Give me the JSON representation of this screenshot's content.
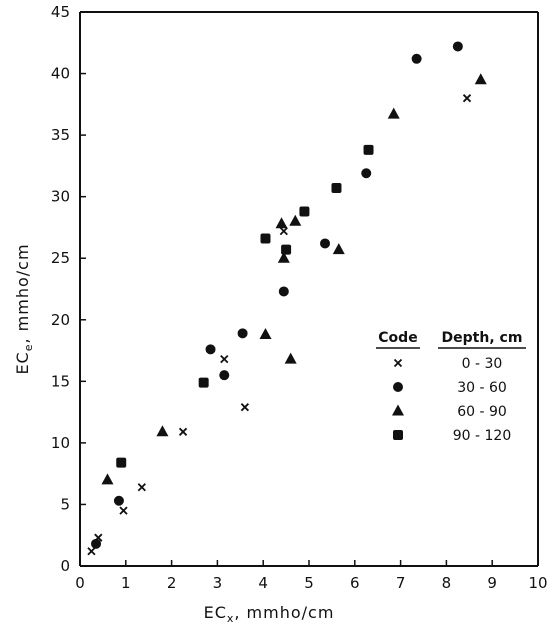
{
  "chart_data": {
    "type": "scatter",
    "xlabel_main": "EC",
    "xlabel_sub": "x",
    "xlabel_unit": ", mmho/cm",
    "ylabel_main": "EC",
    "ylabel_sub": "e",
    "ylabel_unit": ", mmho/cm",
    "xlim": [
      0,
      10
    ],
    "ylim": [
      0,
      45
    ],
    "x_ticks": [
      "0",
      "1",
      "2",
      "3",
      "4",
      "5",
      "6",
      "7",
      "8",
      "9",
      "10"
    ],
    "y_ticks": [
      "0",
      "5",
      "10",
      "15",
      "20",
      "25",
      "30",
      "35",
      "40",
      "45"
    ],
    "grid": false,
    "legend": {
      "placement": "right",
      "code_header": "Code",
      "depth_header": "Depth, cm"
    },
    "series": [
      {
        "name": "0 - 30",
        "marker": "x",
        "points": [
          [
            0.25,
            1.2
          ],
          [
            0.4,
            2.3
          ],
          [
            0.95,
            4.5
          ],
          [
            1.35,
            6.4
          ],
          [
            2.25,
            10.9
          ],
          [
            3.15,
            16.8
          ],
          [
            3.6,
            12.9
          ],
          [
            4.45,
            27.2
          ],
          [
            8.45,
            38.0
          ]
        ]
      },
      {
        "name": "30 - 60",
        "marker": "circle",
        "points": [
          [
            0.35,
            1.8
          ],
          [
            0.85,
            5.3
          ],
          [
            2.85,
            17.6
          ],
          [
            3.15,
            15.5
          ],
          [
            3.55,
            18.9
          ],
          [
            4.45,
            22.3
          ],
          [
            5.35,
            26.2
          ],
          [
            6.25,
            31.9
          ],
          [
            7.35,
            41.2
          ],
          [
            8.25,
            42.2
          ]
        ]
      },
      {
        "name": "60 - 90",
        "marker": "triangle",
        "points": [
          [
            0.6,
            7.0
          ],
          [
            1.8,
            10.9
          ],
          [
            4.05,
            18.8
          ],
          [
            4.4,
            27.8
          ],
          [
            4.45,
            25.0
          ],
          [
            4.6,
            16.8
          ],
          [
            4.7,
            28.0
          ],
          [
            5.65,
            25.7
          ],
          [
            6.85,
            36.7
          ],
          [
            8.75,
            39.5
          ]
        ]
      },
      {
        "name": "90 - 120",
        "marker": "square",
        "points": [
          [
            0.9,
            8.4
          ],
          [
            2.7,
            14.9
          ],
          [
            4.05,
            26.6
          ],
          [
            4.5,
            25.7
          ],
          [
            4.9,
            28.8
          ],
          [
            5.6,
            30.7
          ],
          [
            6.3,
            33.8
          ]
        ]
      }
    ]
  }
}
